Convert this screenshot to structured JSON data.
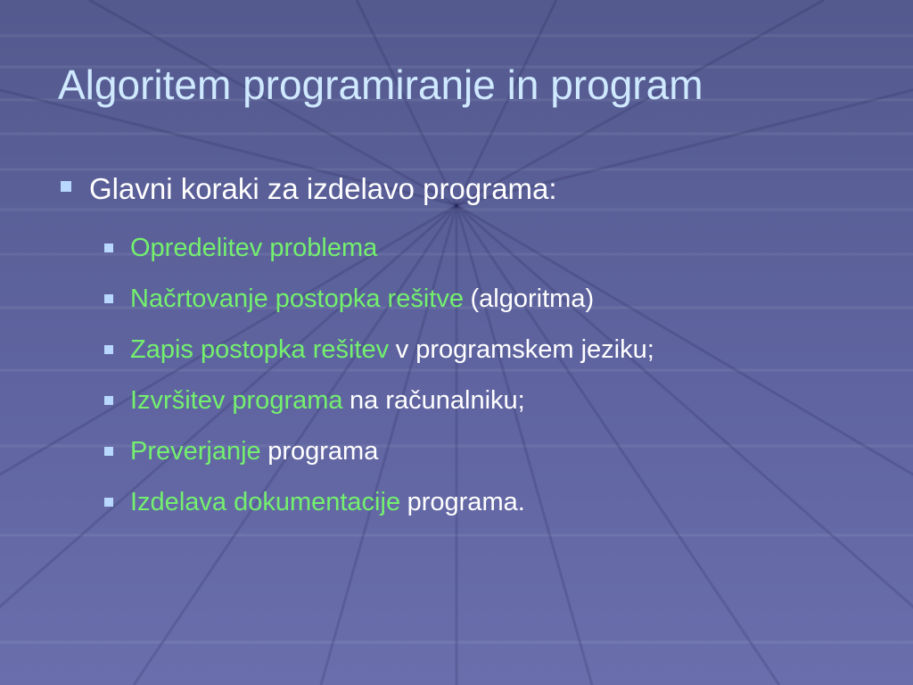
{
  "title": "Algoritem programiranje in program",
  "bullet": "Glavni koraki za izdelavo programa:",
  "items": [
    {
      "highlight": "Opredelitev problema"
    },
    {
      "highlight": "Načrtovanje postopka rešitve",
      "rest": "(algoritma)"
    },
    {
      "highlight": "Zapis postopka rešitev",
      "rest": "v programskem jeziku;"
    },
    {
      "highlight": "Izvršitev programa",
      "rest": "na računalniku;"
    },
    {
      "highlight": "Preverjanje",
      "rest": "programa"
    },
    {
      "highlight": "Izdelava dokumentacije",
      "rest": "programa."
    }
  ]
}
